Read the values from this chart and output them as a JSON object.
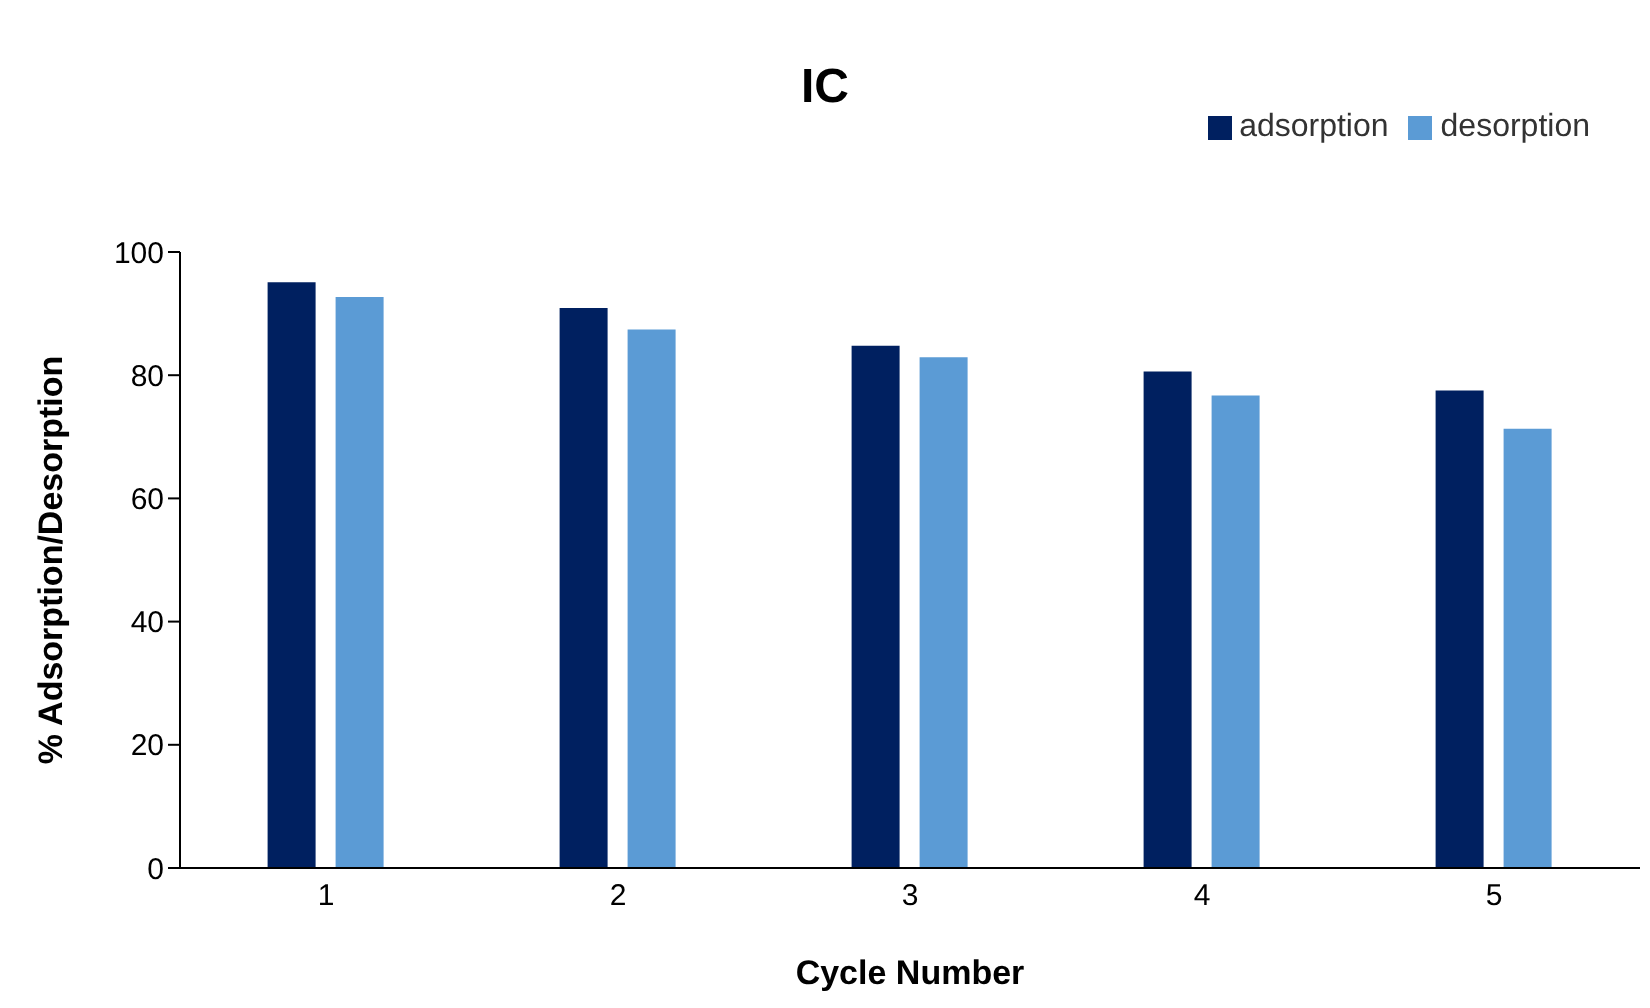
{
  "chart_data": {
    "type": "bar",
    "title": "IC",
    "xlabel": "Cycle Number",
    "ylabel": "% Adsorption/Desorption",
    "categories": [
      "1",
      "2",
      "3",
      "4",
      "5"
    ],
    "series": [
      {
        "name": "adsorption",
        "color": "#002060",
        "values": [
          95.1,
          90.9,
          84.8,
          80.6,
          77.5
        ]
      },
      {
        "name": "desorption",
        "color": "#5b9bd5",
        "values": [
          92.7,
          87.4,
          82.9,
          76.7,
          71.3
        ]
      }
    ],
    "ylim": [
      0,
      100
    ],
    "yticks": [
      0,
      20,
      40,
      60,
      80,
      100
    ],
    "grid": false,
    "legend": "top right"
  }
}
